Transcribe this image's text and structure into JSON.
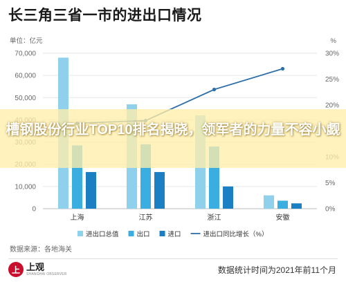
{
  "header": {
    "title": "长三角三省一市的进出口情况"
  },
  "chart_data": {
    "type": "bar",
    "left_unit": "单位：亿元",
    "right_unit": "%",
    "categories": [
      "上海",
      "江苏",
      "浙江",
      "安徽"
    ],
    "left_ticks": [
      "0",
      "10,000",
      "20,000",
      "30,000",
      "40,000",
      "50,000",
      "60,000",
      "70,000"
    ],
    "right_ticks": [
      "0%",
      "5%",
      "10%",
      "15%",
      "20%",
      "25%",
      "30%"
    ],
    "ylim_left": [
      0,
      70000
    ],
    "ylim_right": [
      0,
      30
    ],
    "series": [
      {
        "name": "进出口总值",
        "kind": "bar",
        "color": "#8fd0ec",
        "values": [
          68000,
          47000,
          42000,
          6000
        ]
      },
      {
        "name": "出口",
        "kind": "bar",
        "color": "#3aaee0",
        "values": [
          28500,
          29000,
          28000,
          3600
        ]
      },
      {
        "name": "进口",
        "kind": "bar",
        "color": "#1b7fc4",
        "values": [
          16500,
          16500,
          10000,
          2400
        ]
      },
      {
        "name": "进出口同比增长（%）",
        "kind": "line",
        "axis": "right",
        "color": "#2d6fa8",
        "values": [
          16.5,
          17,
          23,
          27
        ]
      }
    ],
    "grid": true,
    "legend": "bottom"
  },
  "overlay": {
    "headline": "槽钢股份行业TOP10排名揭晓，领军者的力量不容小觑"
  },
  "source": "数据来源：各地海关",
  "footer": {
    "logo_cn": "上观",
    "logo_en": "SHANGHAI OBSERVER",
    "note": "数据统计时间为2021年前11个月"
  }
}
